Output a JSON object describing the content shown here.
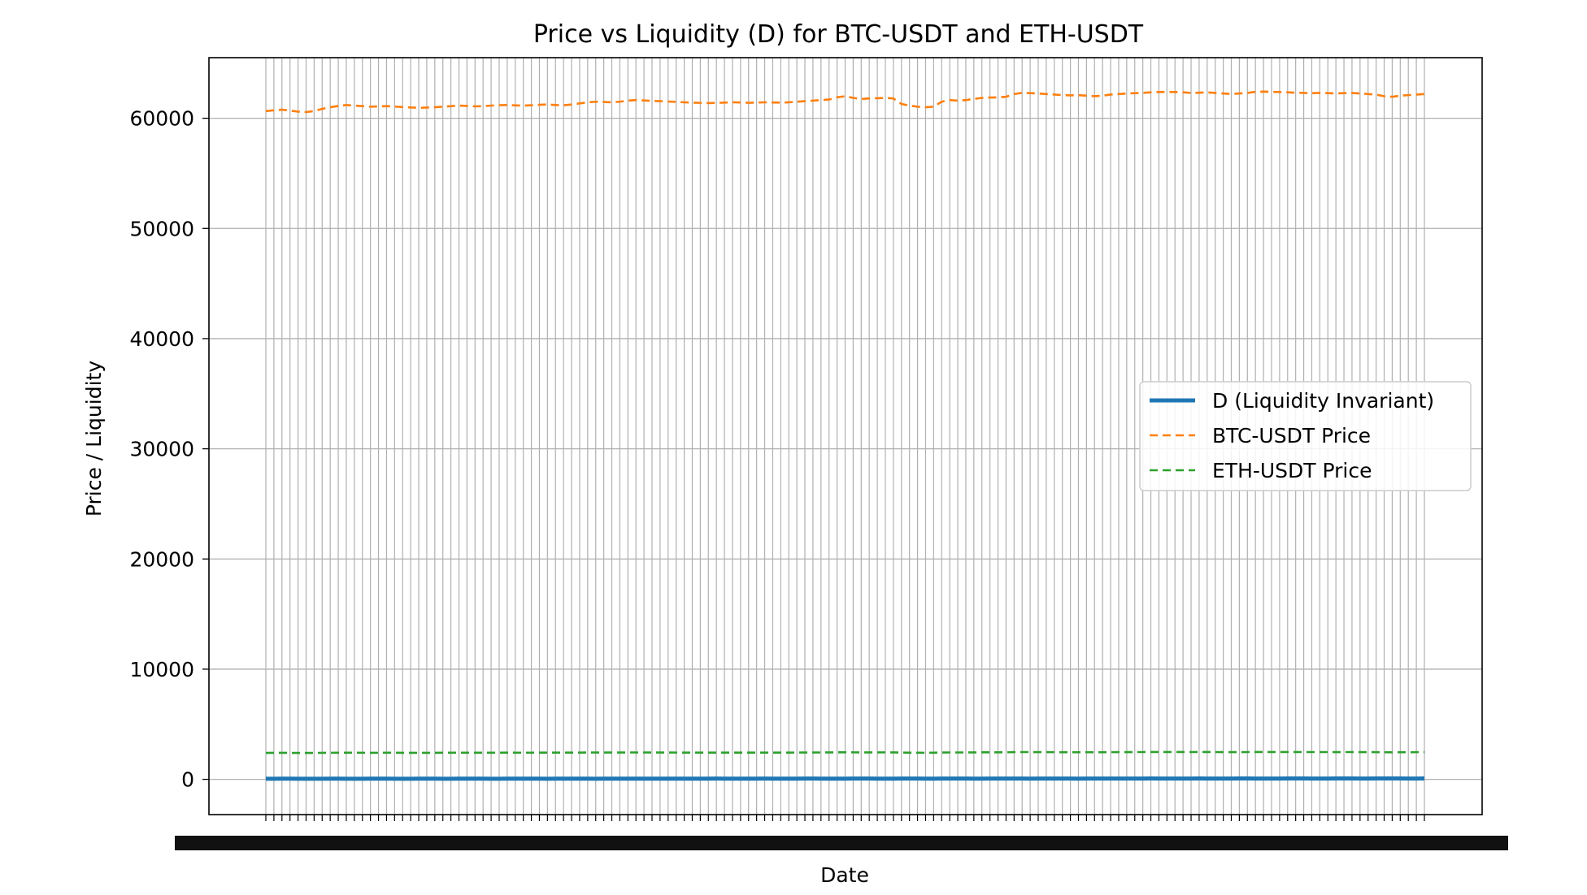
{
  "chart_data": {
    "type": "line",
    "title": "Price vs Liquidity (D) for BTC-USDT and ETH-USDT",
    "xlabel": "Date",
    "ylabel": "Price / Liquidity",
    "ylim": [
      -3200,
      65500
    ],
    "yticks": [
      0,
      10000,
      20000,
      30000,
      40000,
      50000,
      60000
    ],
    "grid": true,
    "legend_position": "center-right",
    "x_tick_count": 145,
    "x_tick_labels_note": "overlapping date labels rendered illegibly",
    "series": [
      {
        "name": "D (Liquidity Invariant)",
        "color": "#1f77b4",
        "style": "solid",
        "values": [
          50,
          55,
          60,
          58,
          52,
          50,
          54,
          56,
          59,
          57,
          53,
          51,
          55,
          58,
          60,
          57,
          54,
          52,
          56,
          59,
          61,
          58,
          55,
          53,
          57,
          60,
          62,
          59,
          56,
          54,
          58,
          61,
          63,
          60,
          57,
          55,
          59,
          62,
          64,
          61,
          58,
          56,
          60,
          63,
          65,
          62,
          59,
          57,
          61,
          64,
          66,
          63,
          60,
          58,
          62,
          65,
          67,
          64,
          61,
          59,
          63,
          66,
          68,
          65,
          62,
          60,
          64,
          67,
          69,
          66,
          63,
          61,
          65,
          68,
          70,
          67,
          64,
          62,
          66,
          69,
          71,
          68,
          65,
          63,
          67,
          70,
          72,
          69,
          66,
          64,
          68,
          71,
          73,
          70,
          67,
          65,
          69,
          72,
          74,
          71,
          68,
          66,
          70,
          73,
          75,
          72,
          69,
          67,
          71,
          74,
          76,
          73,
          70,
          68,
          72,
          75,
          77,
          74,
          71,
          69,
          73,
          76,
          78,
          75,
          72,
          70,
          74,
          77,
          79,
          76,
          73,
          71,
          75,
          78,
          80,
          77,
          74,
          72,
          76,
          79,
          81,
          78,
          75,
          73,
          77
        ]
      },
      {
        "name": "BTC-USDT Price",
        "color": "#ff7f0e",
        "style": "dashed",
        "values": [
          60650,
          60720,
          60780,
          60700,
          60600,
          60560,
          60650,
          60850,
          61000,
          61120,
          61200,
          61150,
          61100,
          61050,
          61080,
          61100,
          61060,
          61020,
          60980,
          60950,
          60970,
          61000,
          61050,
          61100,
          61150,
          61120,
          61080,
          61100,
          61150,
          61180,
          61200,
          61170,
          61150,
          61180,
          61220,
          61250,
          61200,
          61180,
          61250,
          61350,
          61450,
          61500,
          61480,
          61450,
          61500,
          61600,
          61650,
          61620,
          61580,
          61550,
          61520,
          61480,
          61450,
          61420,
          61400,
          61380,
          61400,
          61420,
          61450,
          61430,
          61400,
          61420,
          61450,
          61430,
          61420,
          61450,
          61500,
          61550,
          61600,
          61650,
          61700,
          61900,
          62000,
          61850,
          61750,
          61800,
          61820,
          61850,
          61800,
          61300,
          61150,
          61050,
          61000,
          61050,
          61500,
          61650,
          61600,
          61650,
          61750,
          61850,
          61880,
          61900,
          61950,
          62200,
          62300,
          62280,
          62250,
          62200,
          62150,
          62100,
          62080,
          62100,
          62050,
          62000,
          62050,
          62150,
          62200,
          62250,
          62280,
          62300,
          62350,
          62380,
          62400,
          62380,
          62350,
          62300,
          62320,
          62350,
          62300,
          62250,
          62200,
          62250,
          62300,
          62400,
          62420,
          62400,
          62380,
          62350,
          62320,
          62300,
          62280,
          62300,
          62280,
          62250,
          62280,
          62300,
          62250,
          62200,
          62150,
          62000,
          61950,
          62050,
          62100,
          62150,
          62200
        ]
      },
      {
        "name": "ETH-USDT Price",
        "color": "#2ca02c",
        "style": "dashed",
        "values": [
          2400,
          2405,
          2410,
          2402,
          2398,
          2395,
          2400,
          2405,
          2410,
          2415,
          2418,
          2415,
          2412,
          2410,
          2412,
          2415,
          2413,
          2410,
          2408,
          2406,
          2408,
          2410,
          2413,
          2416,
          2419,
          2417,
          2415,
          2416,
          2419,
          2421,
          2423,
          2421,
          2419,
          2421,
          2424,
          2426,
          2423,
          2421,
          2424,
          2428,
          2432,
          2435,
          2433,
          2431,
          2434,
          2438,
          2440,
          2438,
          2436,
          2434,
          2432,
          2430,
          2428,
          2426,
          2425,
          2424,
          2425,
          2426,
          2428,
          2427,
          2425,
          2426,
          2428,
          2427,
          2426,
          2428,
          2431,
          2434,
          2437,
          2440,
          2443,
          2450,
          2455,
          2448,
          2443,
          2445,
          2446,
          2448,
          2445,
          2425,
          2418,
          2414,
          2412,
          2414,
          2432,
          2440,
          2438,
          2440,
          2445,
          2450,
          2452,
          2453,
          2456,
          2470,
          2476,
          2475,
          2473,
          2470,
          2467,
          2464,
          2463,
          2464,
          2461,
          2458,
          2461,
          2467,
          2470,
          2473,
          2475,
          2476,
          2479,
          2481,
          2482,
          2481,
          2479,
          2476,
          2477,
          2479,
          2476,
          2473,
          2470,
          2473,
          2476,
          2482,
          2483,
          2482,
          2481,
          2479,
          2477,
          2476,
          2475,
          2476,
          2475,
          2473,
          2475,
          2476,
          2473,
          2470,
          2467,
          2458,
          2455,
          2461,
          2464,
          2467,
          2470
        ]
      }
    ]
  }
}
